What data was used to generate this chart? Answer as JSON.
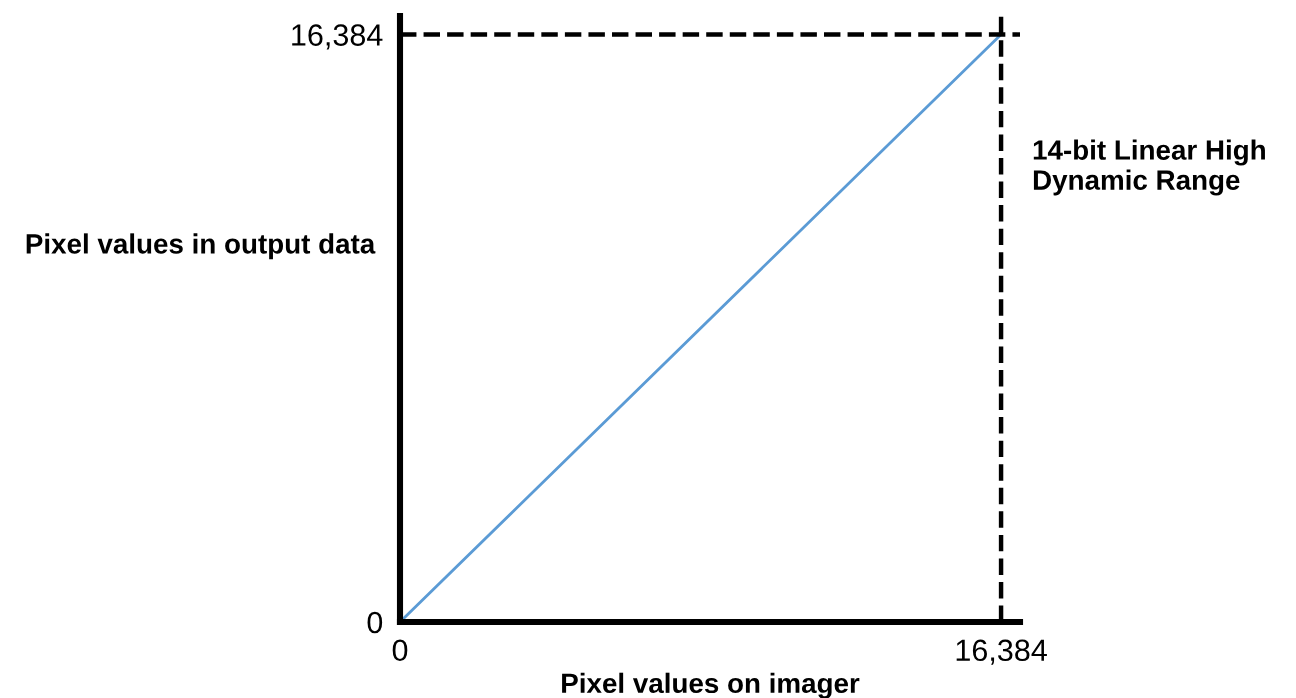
{
  "chart_data": {
    "type": "line",
    "xlabel": "Pixel values on imager",
    "ylabel": "Pixel values in output data",
    "x": [
      0,
      16384
    ],
    "series": [
      {
        "color": "#5b9bd5",
        "values": [
          0,
          16384
        ]
      }
    ],
    "xlim": [
      0,
      16900
    ],
    "ylim": [
      0,
      16900
    ],
    "xticks": [
      {
        "value": 0,
        "label": "0"
      },
      {
        "value": 16384,
        "label": "16,384"
      }
    ],
    "yticks": [
      {
        "value": 0,
        "label": "0"
      },
      {
        "value": 16384,
        "label": "16,384"
      }
    ],
    "ref_lines": [
      {
        "axis": "x",
        "value": 16384,
        "label": "14-bit Linear High Dynamic Range",
        "color": "#000000",
        "line_style": "dashed"
      },
      {
        "axis": "y",
        "value": 16384,
        "label": null,
        "color": "#000000",
        "line_style": "dashed"
      }
    ],
    "grid": false,
    "marker": "none",
    "line_style": "solid"
  }
}
